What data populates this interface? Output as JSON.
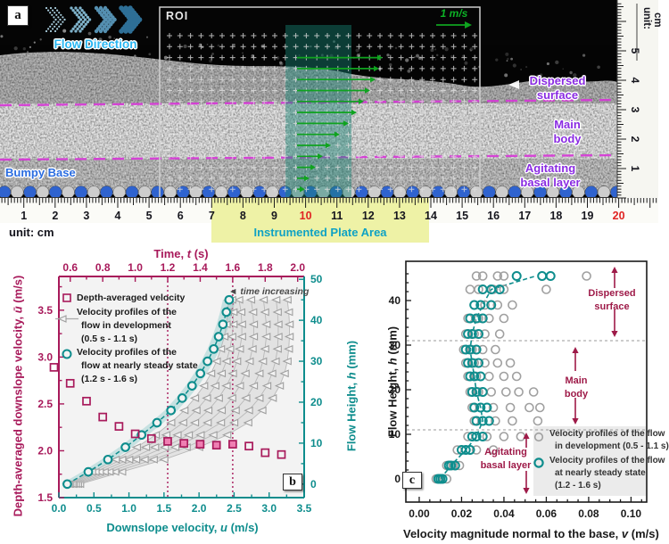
{
  "colors": {
    "maroon": "#a81a5b",
    "teal": "#0e8d8d",
    "pink": "#ef7fb2",
    "gray_marker": "#a0a0a0",
    "green": "#0fa31f",
    "magenta": "#d738d7",
    "purple": "#8a2be2",
    "blue_label": "#2a6ce0",
    "light_blue": "#29b6f2",
    "dark_red": "#9e1a48",
    "ruler_yellow": "#eef2a6",
    "red_number": "#e02423",
    "plate_teal": "#0fa2c4",
    "plot_bg": "#f3f3f3"
  },
  "panel_a": {
    "label": "a",
    "flow_direction": "Flow Direction",
    "roi_label": "ROI",
    "scale_label": "1 m/s",
    "bumpy_base": "Bumpy Base",
    "dispersed": {
      "lines": [
        "Dispersed",
        "surface"
      ]
    },
    "main_body": {
      "lines": [
        "Main",
        "body"
      ]
    },
    "agitating": {
      "lines": [
        "Agitating",
        "basal layer"
      ]
    },
    "side_ruler": {
      "unit": "unit: cm",
      "numbers": [
        "5",
        "4",
        "3",
        "2",
        "1"
      ]
    },
    "bottom_ruler": {
      "numbers": [
        "1",
        "2",
        "3",
        "4",
        "5",
        "6",
        "7",
        "8",
        "9",
        "10",
        "11",
        "12",
        "13",
        "14",
        "15",
        "16",
        "17",
        "18",
        "19",
        "20"
      ],
      "red": [
        "10",
        "20"
      ]
    },
    "unit_caption": "unit: cm",
    "plate_area": "Instrumented Plate Area"
  },
  "chart_data": [
    {
      "panel_label": "b",
      "type": "scatter",
      "axes": {
        "top": {
          "title": {
            "pre": "Time, ",
            "var": "t",
            "post": " (s)"
          },
          "range": [
            0.53,
            2.04
          ],
          "ticks": [
            "0.6",
            "0.8",
            "1.0",
            "1.2",
            "1.4",
            "1.6",
            "1.8",
            "2.0"
          ],
          "minor_step": 0.1
        },
        "bottom": {
          "title": {
            "pre": "Downslope velocity, ",
            "var": "u",
            "post": " (m/s)"
          },
          "range": [
            0,
            3.5
          ],
          "ticks": [
            "0.0",
            "0.5",
            "1.0",
            "1.5",
            "2.0",
            "2.5",
            "3.0",
            "3.5"
          ],
          "minor_step": 0.25
        },
        "left": {
          "title": {
            "pre": "Depth-averaged downslope velocity, ",
            "var": "ū",
            "post": " (m/s)"
          },
          "range": [
            1.5,
            3.86
          ],
          "ticks": [
            "1.5",
            "2.0",
            "2.5",
            "3.0",
            "3.5"
          ],
          "minor_step": 0.25
        },
        "right": {
          "title": {
            "pre": "Flow Height, ",
            "var": "h",
            "post": " (mm)"
          },
          "range": [
            -3.3,
            50.7
          ],
          "ticks": [
            "0",
            "10",
            "20",
            "30",
            "40",
            "50"
          ],
          "minor_step": 5
        }
      },
      "guides_t": [
        1.2,
        1.6
      ],
      "annotation": {
        "icon": "◄",
        "text": "time increasing"
      },
      "legend": [
        {
          "marker": "square",
          "lines": [
            "Depth-averaged velocity"
          ]
        },
        {
          "marker": "triangle",
          "lines": [
            "Velocity profiles of the",
            "flow in development",
            "(0.5 s - 1.1 s)"
          ]
        },
        {
          "marker": "circle",
          "lines": [
            "Velocity profiles of the",
            "flow at nearly steady state",
            "(1.2 s - 1.6 s)"
          ]
        }
      ],
      "depth_averaged": {
        "t": [
          0.5,
          0.6,
          0.7,
          0.8,
          0.9,
          1.0,
          1.1,
          1.2,
          1.3,
          1.4,
          1.5,
          1.6,
          1.7,
          1.8,
          1.9
        ],
        "u_bar": [
          2.89,
          2.72,
          2.53,
          2.36,
          2.26,
          2.18,
          2.13,
          2.1,
          2.08,
          2.07,
          2.06,
          2.07,
          2.05,
          1.98,
          1.96
        ],
        "highlight_range": [
          1.2,
          1.6
        ]
      },
      "profile_heights": [
        0,
        3,
        6,
        9,
        12,
        15,
        18,
        21,
        24,
        27,
        30,
        33,
        36,
        39,
        42,
        45
      ],
      "steady_profile_u": [
        0.12,
        0.42,
        0.7,
        0.95,
        1.18,
        1.4,
        1.6,
        1.76,
        1.9,
        2.02,
        2.12,
        2.21,
        2.28,
        2.34,
        2.39,
        2.43
      ],
      "dev_profiles": [
        {
          "t": 0.5,
          "u": [
            0.3,
            0.9,
            1.5,
            2.0,
            2.4,
            2.7,
            2.9,
            3.05,
            3.15,
            3.22,
            3.26,
            3.28,
            3.29,
            3.29,
            3.28,
            3.26
          ]
        },
        {
          "t": 0.6,
          "u": [
            0.27,
            0.8,
            1.35,
            1.82,
            2.2,
            2.5,
            2.71,
            2.86,
            2.97,
            3.04,
            3.09,
            3.12,
            3.13,
            3.13,
            3.12,
            3.1
          ]
        },
        {
          "t": 0.7,
          "u": [
            0.24,
            0.72,
            1.22,
            1.66,
            2.02,
            2.31,
            2.52,
            2.67,
            2.78,
            2.86,
            2.91,
            2.94,
            2.96,
            2.96,
            2.94,
            2.92
          ]
        },
        {
          "t": 0.8,
          "u": [
            0.21,
            0.65,
            1.1,
            1.51,
            1.85,
            2.12,
            2.32,
            2.47,
            2.58,
            2.66,
            2.72,
            2.76,
            2.78,
            2.78,
            2.77,
            2.74
          ]
        },
        {
          "t": 0.9,
          "u": [
            0.19,
            0.58,
            1.0,
            1.37,
            1.69,
            1.94,
            2.13,
            2.28,
            2.39,
            2.48,
            2.54,
            2.58,
            2.61,
            2.61,
            2.6,
            2.57
          ]
        },
        {
          "t": 1.0,
          "u": [
            0.16,
            0.52,
            0.9,
            1.24,
            1.53,
            1.77,
            1.96,
            2.11,
            2.23,
            2.32,
            2.39,
            2.44,
            2.47,
            2.49,
            2.49,
            2.47
          ]
        },
        {
          "t": 1.1,
          "u": [
            0.14,
            0.47,
            0.81,
            1.11,
            1.38,
            1.6,
            1.79,
            1.94,
            2.07,
            2.17,
            2.25,
            2.31,
            2.36,
            2.39,
            2.41,
            2.42
          ]
        }
      ]
    },
    {
      "panel_label": "c",
      "type": "scatter",
      "axes": {
        "bottom": {
          "title": {
            "pre": "Velocity magnitude normal to the base, ",
            "var": "v",
            "post": " (m/s)"
          },
          "range": [
            -0.0063,
            0.1074
          ],
          "ticks": [
            "0.00",
            "0.02",
            "0.04",
            "0.06",
            "0.08",
            "0.10"
          ],
          "minor_step": 0.005
        },
        "left": {
          "title": {
            "pre": "Flow Height, ",
            "var": "h",
            "post": " (mm)"
          },
          "range": [
            -5.2,
            48.8
          ],
          "ticks": [
            "0",
            "10",
            "20",
            "30",
            "40"
          ],
          "minor_step": 2
        }
      },
      "guides_h": [
        11,
        31
      ],
      "zones": [
        {
          "lines": [
            "Dispersed",
            "surface"
          ]
        },
        {
          "lines": [
            "Main",
            "body"
          ]
        },
        {
          "lines": [
            "Agitating",
            "basal layer"
          ]
        }
      ],
      "legend": [
        {
          "marker": "circle_gray",
          "lines": [
            "Velocity profiles of the flow",
            "in development (0.5 - 1.1 s)"
          ]
        },
        {
          "marker": "circle_teal",
          "lines": [
            "Velocity profiles of the flow",
            "at nearly steady state",
            "(1.2 - 1.6 s)"
          ]
        }
      ],
      "rows_h": [
        0,
        3,
        6.5,
        9.5,
        13,
        16,
        19.5,
        23,
        26,
        29,
        32.5,
        36,
        39,
        42.5,
        45.5
      ],
      "development_v": [
        [
          0.008,
          0.01,
          0.013
        ],
        [
          0.013,
          0.016,
          0.019
        ],
        [
          0.018,
          0.022,
          0.027,
          0.035
        ],
        [
          0.023,
          0.027,
          0.032,
          0.04,
          0.048
        ],
        [
          0.026,
          0.03,
          0.036,
          0.044,
          0.056
        ],
        [
          0.025,
          0.029,
          0.035,
          0.043,
          0.052,
          0.057
        ],
        [
          0.024,
          0.028,
          0.034,
          0.041,
          0.047,
          0.054
        ],
        [
          0.023,
          0.027,
          0.033,
          0.04,
          0.046
        ],
        [
          0.022,
          0.026,
          0.031,
          0.037,
          0.043
        ],
        [
          0.021,
          0.025,
          0.03,
          0.036
        ],
        [
          0.022,
          0.026,
          0.031,
          0.038
        ],
        [
          0.023,
          0.028,
          0.033,
          0.04
        ],
        [
          0.026,
          0.031,
          0.037,
          0.044
        ],
        [
          0.024,
          0.028,
          0.035,
          0.04,
          0.06
        ],
        [
          0.027,
          0.03,
          0.037,
          0.04,
          0.079
        ]
      ],
      "steady_v": [
        [
          0.009,
          0.01,
          0.011
        ],
        [
          0.014,
          0.015,
          0.017
        ],
        [
          0.02,
          0.022,
          0.024
        ],
        [
          0.025,
          0.027,
          0.03
        ],
        [
          0.027,
          0.03,
          0.033
        ],
        [
          0.026,
          0.029,
          0.032
        ],
        [
          0.025,
          0.027,
          0.03
        ],
        [
          0.024,
          0.026,
          0.029
        ],
        [
          0.023,
          0.025,
          0.028
        ],
        [
          0.022,
          0.024,
          0.027
        ],
        [
          0.023,
          0.025,
          0.028
        ],
        [
          0.024,
          0.027,
          0.03
        ],
        [
          0.026,
          0.029,
          0.034
        ],
        [
          0.03,
          0.034,
          0.038
        ],
        [
          0.046,
          0.058,
          0.062
        ]
      ],
      "steady_mean_v": [
        0.01,
        0.015,
        0.022,
        0.027,
        0.03,
        0.029,
        0.027,
        0.026,
        0.025,
        0.024,
        0.025,
        0.027,
        0.03,
        0.034,
        0.055
      ]
    }
  ]
}
